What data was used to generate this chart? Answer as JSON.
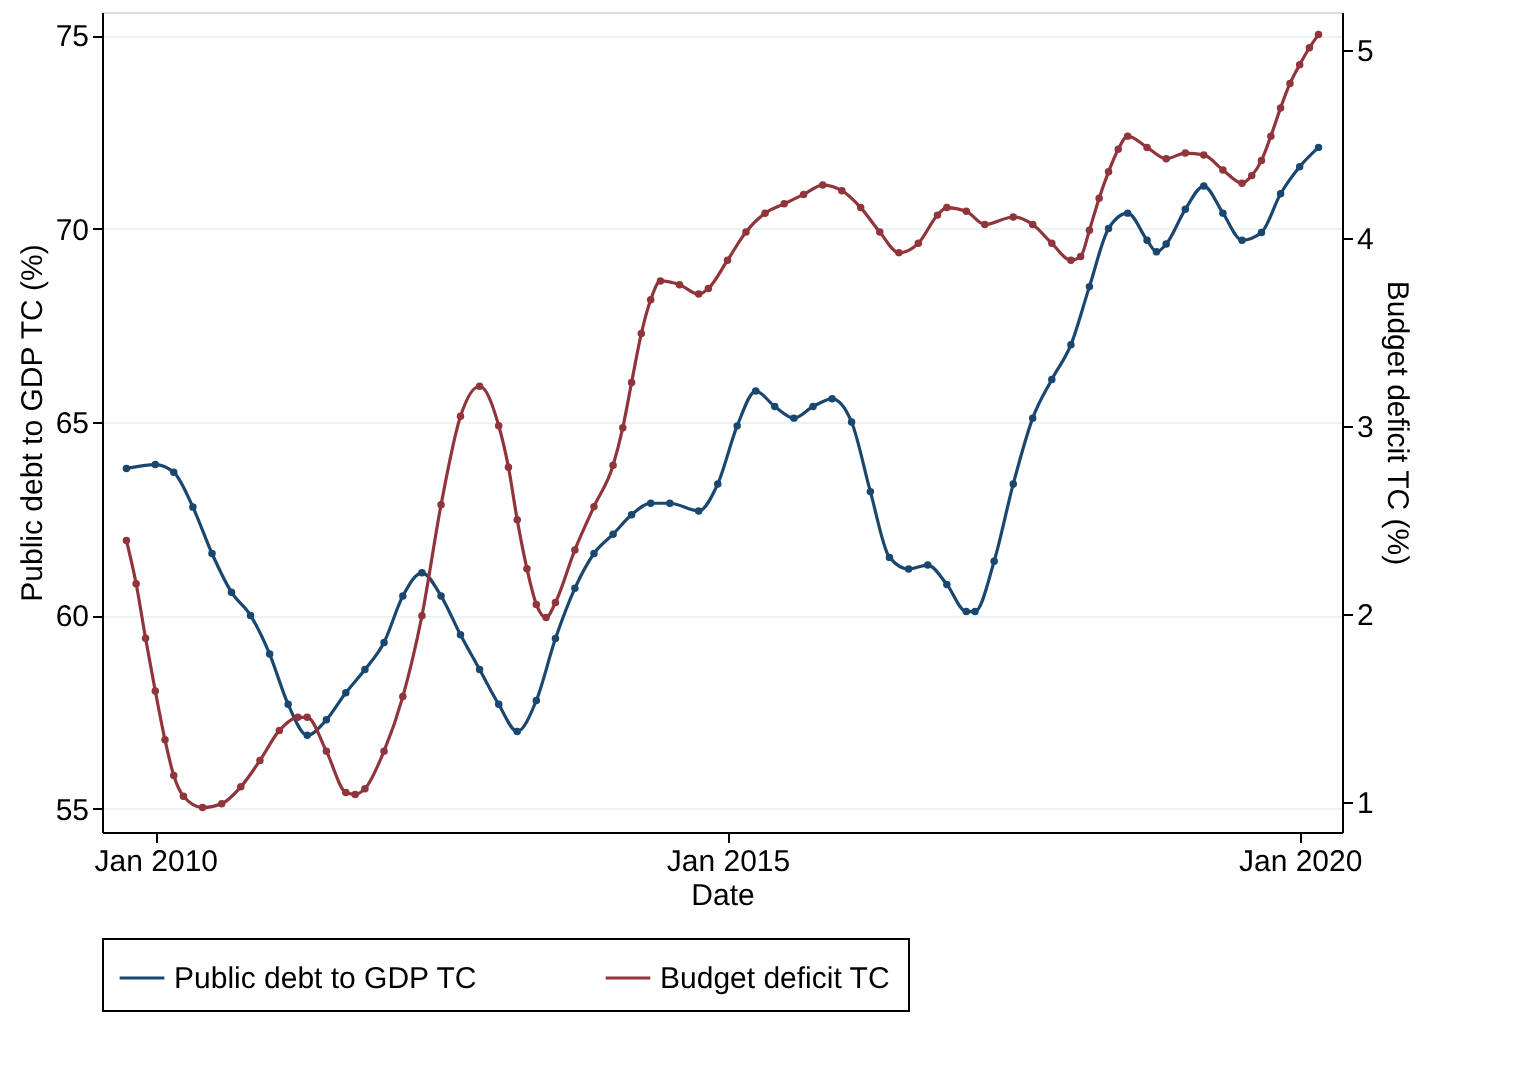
{
  "chart_data": {
    "type": "line",
    "xlabel": "Date",
    "ylabel": "Public debt to GDP TC (%)",
    "y2label": "Budget deficit TC (%)",
    "xlim": [
      "2009-07-15",
      "2020-05-15"
    ],
    "xticks": [
      {
        "value": "2010-01",
        "label": "Jan 2010"
      },
      {
        "value": "2015-01",
        "label": "Jan 2015"
      },
      {
        "value": "2020-01",
        "label": "Jan 2020"
      }
    ],
    "ylim": [
      54.4,
      75.6
    ],
    "yticks": [
      55,
      60,
      65,
      70,
      75
    ],
    "y2lim": [
      0.84,
      5.2
    ],
    "y2ticks": [
      1,
      2,
      3,
      4,
      5
    ],
    "grid": "y",
    "legend": "bottom",
    "marker": "circle",
    "line_style": "solid",
    "series": [
      {
        "name": "Public debt to GDP TC",
        "color": "#1a476f",
        "axis": "y",
        "x": [
          "2009-10",
          "2010-01",
          "2010-03",
          "2010-05",
          "2010-07",
          "2010-09",
          "2010-11",
          "2011-01",
          "2011-03",
          "2011-05",
          "2011-07",
          "2011-09",
          "2011-11",
          "2012-01",
          "2012-03",
          "2012-05",
          "2012-07",
          "2012-09",
          "2012-11",
          "2013-01",
          "2013-03",
          "2013-05",
          "2013-07",
          "2013-09",
          "2013-11",
          "2014-01",
          "2014-03",
          "2014-05",
          "2014-07",
          "2014-10",
          "2014-12",
          "2015-02",
          "2015-04",
          "2015-06",
          "2015-08",
          "2015-10",
          "2015-12",
          "2016-02",
          "2016-04",
          "2016-06",
          "2016-08",
          "2016-10",
          "2016-12",
          "2017-02",
          "2017-03",
          "2017-05",
          "2017-07",
          "2017-09",
          "2017-11",
          "2018-01",
          "2018-03",
          "2018-05",
          "2018-07",
          "2018-09",
          "2018-10",
          "2018-11",
          "2019-01",
          "2019-03",
          "2019-05",
          "2019-07",
          "2019-09",
          "2019-11",
          "2020-01",
          "2020-03"
        ],
        "values": [
          63.8,
          63.9,
          63.7,
          62.8,
          61.6,
          60.6,
          60.0,
          59.0,
          57.7,
          56.9,
          57.3,
          58.0,
          58.6,
          59.3,
          60.5,
          61.1,
          60.5,
          59.5,
          58.6,
          57.7,
          57.0,
          57.8,
          59.4,
          60.7,
          61.6,
          62.1,
          62.6,
          62.9,
          62.9,
          62.7,
          63.4,
          64.9,
          65.8,
          65.4,
          65.1,
          65.4,
          65.6,
          65.0,
          63.2,
          61.5,
          61.2,
          61.3,
          60.8,
          60.1,
          60.1,
          61.4,
          63.4,
          65.1,
          66.1,
          67.0,
          68.5,
          70.0,
          70.4,
          69.7,
          69.4,
          69.6,
          70.5,
          71.1,
          70.4,
          69.7,
          69.9,
          70.9,
          71.6,
          72.1
        ]
      },
      {
        "name": "Budget deficit TC",
        "color": "#90353b",
        "axis": "y2",
        "x": [
          "2009-10",
          "2009-11",
          "2009-12",
          "2010-01",
          "2010-02",
          "2010-03",
          "2010-04",
          "2010-06",
          "2010-08",
          "2010-10",
          "2010-12",
          "2011-02",
          "2011-04",
          "2011-05",
          "2011-07",
          "2011-09",
          "2011-10",
          "2011-11",
          "2012-01",
          "2012-03",
          "2012-05",
          "2012-07",
          "2012-09",
          "2012-11",
          "2013-01",
          "2013-02",
          "2013-03",
          "2013-04",
          "2013-05",
          "2013-06",
          "2013-07",
          "2013-09",
          "2013-11",
          "2014-01",
          "2014-02",
          "2014-03",
          "2014-04",
          "2014-05",
          "2014-06",
          "2014-08",
          "2014-10",
          "2014-11",
          "2015-01",
          "2015-03",
          "2015-05",
          "2015-07",
          "2015-09",
          "2015-11",
          "2016-01",
          "2016-03",
          "2016-05",
          "2016-07",
          "2016-09",
          "2016-11",
          "2016-12",
          "2017-02",
          "2017-04",
          "2017-07",
          "2017-09",
          "2017-11",
          "2018-01",
          "2018-02",
          "2018-03",
          "2018-04",
          "2018-05",
          "2018-06",
          "2018-07",
          "2018-09",
          "2018-11",
          "2019-01",
          "2019-03",
          "2019-05",
          "2019-07",
          "2019-08",
          "2019-09",
          "2019-10",
          "2019-11",
          "2019-12",
          "2020-01",
          "2020-02",
          "2020-03"
        ],
        "values": [
          2.39,
          2.16,
          1.87,
          1.59,
          1.33,
          1.14,
          1.03,
          0.97,
          0.99,
          1.08,
          1.22,
          1.38,
          1.45,
          1.45,
          1.27,
          1.05,
          1.04,
          1.07,
          1.27,
          1.56,
          1.99,
          2.58,
          3.05,
          3.21,
          3.0,
          2.78,
          2.5,
          2.24,
          2.05,
          1.98,
          2.06,
          2.34,
          2.57,
          2.79,
          2.99,
          3.23,
          3.49,
          3.67,
          3.77,
          3.75,
          3.7,
          3.73,
          3.88,
          4.03,
          4.13,
          4.18,
          4.23,
          4.28,
          4.25,
          4.16,
          4.03,
          3.92,
          3.97,
          4.12,
          4.16,
          4.14,
          4.07,
          4.11,
          4.07,
          3.97,
          3.88,
          3.9,
          4.04,
          4.21,
          4.35,
          4.47,
          4.54,
          4.48,
          4.42,
          4.45,
          4.44,
          4.36,
          4.29,
          4.33,
          4.41,
          4.54,
          4.69,
          4.82,
          4.92,
          5.01,
          5.08
        ]
      }
    ]
  }
}
